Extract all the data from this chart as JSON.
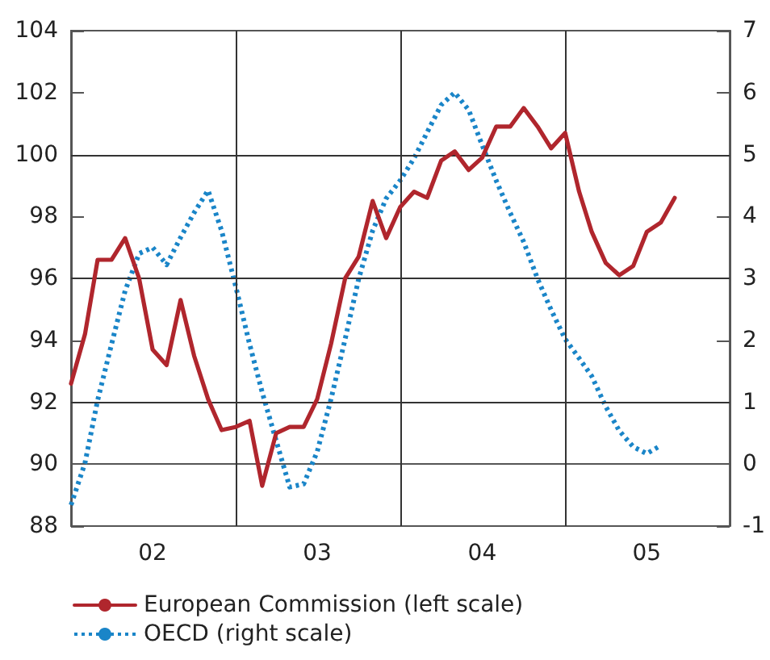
{
  "chart_data": {
    "type": "line",
    "xlim": [
      "2002-01",
      "2006-01"
    ],
    "xticks": [
      {
        "value": "2002-07",
        "label": "02"
      },
      {
        "value": "2003-07",
        "label": "03"
      },
      {
        "value": "2004-07",
        "label": "04"
      },
      {
        "value": "2005-07",
        "label": "05"
      }
    ],
    "ylim": [
      88,
      104
    ],
    "yticks": [
      88,
      90,
      92,
      94,
      96,
      98,
      100,
      102,
      104
    ],
    "y2lim": [
      -1,
      7
    ],
    "y2ticks": [
      -1,
      0,
      1,
      2,
      3,
      4,
      5,
      6,
      7
    ],
    "legend": "bottom",
    "marker": "none",
    "ref_lines": [
      {
        "axis": "x",
        "value": "2003-01",
        "color": "#333333",
        "line_style": "solid"
      },
      {
        "axis": "x",
        "value": "2004-01",
        "color": "#333333",
        "line_style": "solid"
      },
      {
        "axis": "x",
        "value": "2005-01",
        "color": "#333333",
        "line_style": "solid"
      },
      {
        "axis": "y",
        "value": 92,
        "color": "#333333",
        "line_style": "solid"
      },
      {
        "axis": "y",
        "value": 96,
        "color": "#333333",
        "line_style": "solid"
      },
      {
        "axis": "y",
        "value": 100,
        "color": "#333333",
        "line_style": "solid"
      }
    ],
    "series": [
      {
        "name": "European Commission (left scale)",
        "color": "#b0262d",
        "line_style": "solid",
        "x": [
          "2002-01",
          "2002-02",
          "2002-03",
          "2002-04",
          "2002-05",
          "2002-06",
          "2002-07",
          "2002-08",
          "2002-09",
          "2002-10",
          "2002-11",
          "2002-12",
          "2003-01",
          "2003-02",
          "2003-03",
          "2003-04",
          "2003-05",
          "2003-06",
          "2003-07",
          "2003-08",
          "2003-09",
          "2003-10",
          "2003-11",
          "2003-12",
          "2004-01",
          "2004-02",
          "2004-03",
          "2004-04",
          "2004-05",
          "2004-06",
          "2004-07",
          "2004-08",
          "2004-09",
          "2004-10",
          "2004-11",
          "2004-12",
          "2005-01",
          "2005-02",
          "2005-03",
          "2005-04",
          "2005-05",
          "2005-06",
          "2005-07",
          "2005-08",
          "2005-09"
        ],
        "values": [
          92.6,
          94.2,
          96.6,
          96.6,
          97.3,
          96.0,
          93.7,
          93.2,
          95.3,
          93.5,
          92.1,
          91.1,
          91.2,
          91.4,
          89.3,
          91.0,
          91.2,
          91.2,
          92.1,
          93.9,
          96.0,
          96.7,
          98.5,
          97.3,
          98.3,
          98.8,
          98.6,
          99.8,
          100.1,
          99.5,
          99.9,
          100.9,
          100.9,
          101.5,
          100.9,
          100.2,
          100.7,
          98.8,
          97.5,
          96.5,
          96.1,
          96.4,
          97.5,
          97.8,
          98.6
        ]
      },
      {
        "name": "OECD (right scale)",
        "color": "#1a85c8",
        "line_style": "dotted",
        "axis": "y2",
        "x": [
          "2002-01",
          "2002-02",
          "2002-03",
          "2002-04",
          "2002-05",
          "2002-06",
          "2002-07",
          "2002-08",
          "2002-09",
          "2002-10",
          "2002-11",
          "2002-12",
          "2003-01",
          "2003-02",
          "2003-03",
          "2003-04",
          "2003-05",
          "2003-06",
          "2003-07",
          "2003-08",
          "2003-09",
          "2003-10",
          "2003-11",
          "2003-12",
          "2004-01",
          "2004-02",
          "2004-03",
          "2004-04",
          "2004-05",
          "2004-06",
          "2004-07",
          "2004-08",
          "2004-09",
          "2004-10",
          "2004-11",
          "2004-12",
          "2005-01",
          "2005-02",
          "2005-03",
          "2005-04",
          "2005-05",
          "2005-06",
          "2005-07",
          "2005-08"
        ],
        "values": [
          -0.66,
          0.02,
          1.03,
          1.94,
          2.8,
          3.4,
          3.5,
          3.22,
          3.66,
          4.06,
          4.42,
          3.77,
          2.88,
          1.94,
          1.16,
          0.38,
          -0.37,
          -0.32,
          0.2,
          1.06,
          2.02,
          2.99,
          3.77,
          4.29,
          4.58,
          4.94,
          5.36,
          5.8,
          6.0,
          5.72,
          5.15,
          4.58,
          4.06,
          3.59,
          2.99,
          2.49,
          2.02,
          1.71,
          1.42,
          0.93,
          0.54,
          0.28,
          0.17,
          0.3
        ]
      }
    ]
  }
}
